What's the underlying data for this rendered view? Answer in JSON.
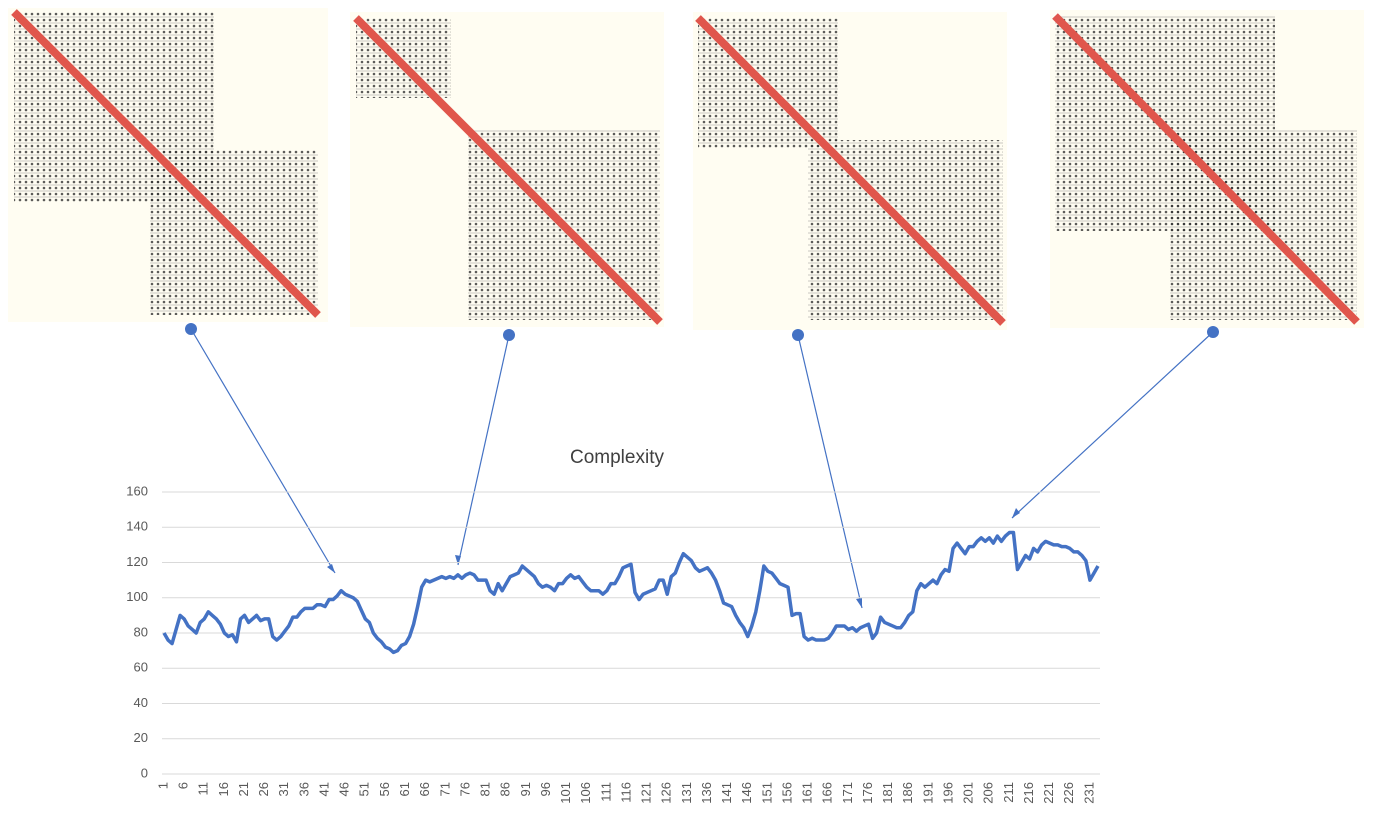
{
  "chart_data": {
    "type": "line",
    "title": "Complexity",
    "x": [
      1,
      2,
      3,
      4,
      5,
      6,
      7,
      8,
      9,
      10,
      11,
      12,
      13,
      14,
      15,
      16,
      17,
      18,
      19,
      20,
      21,
      22,
      23,
      24,
      25,
      26,
      27,
      28,
      29,
      30,
      31,
      32,
      33,
      34,
      35,
      36,
      37,
      38,
      39,
      40,
      41,
      42,
      43,
      44,
      45,
      46,
      47,
      48,
      49,
      50,
      51,
      52,
      53,
      54,
      55,
      56,
      57,
      58,
      59,
      60,
      61,
      62,
      63,
      64,
      65,
      66,
      67,
      68,
      69,
      70,
      71,
      72,
      73,
      74,
      75,
      76,
      77,
      78,
      79,
      80,
      81,
      82,
      83,
      84,
      85,
      86,
      87,
      88,
      89,
      90,
      91,
      92,
      93,
      94,
      95,
      96,
      97,
      98,
      99,
      100,
      101,
      102,
      103,
      104,
      105,
      106,
      107,
      108,
      109,
      110,
      111,
      112,
      113,
      114,
      115,
      116,
      117,
      118,
      119,
      120,
      121,
      122,
      123,
      124,
      125,
      126,
      127,
      128,
      129,
      130,
      131,
      132,
      133,
      134,
      135,
      136,
      137,
      138,
      139,
      140,
      141,
      142,
      143,
      144,
      145,
      146,
      147,
      148,
      149,
      150,
      151,
      152,
      153,
      154,
      155,
      156,
      157,
      158,
      159,
      160,
      161,
      162,
      163,
      164,
      165,
      166,
      167,
      168,
      169,
      170,
      171,
      172,
      173,
      174,
      175,
      176,
      177,
      178,
      179,
      180,
      181,
      182,
      183,
      184,
      185,
      186,
      187,
      188,
      189,
      190,
      191,
      192,
      193,
      194,
      195,
      196,
      197,
      198,
      199,
      200,
      201,
      202,
      203,
      204,
      205,
      206,
      207,
      208,
      209,
      210,
      211,
      212,
      213,
      214,
      215,
      216,
      217,
      218,
      219,
      220,
      221,
      222,
      223,
      224,
      225,
      226,
      227,
      228,
      229,
      230,
      231,
      232,
      233
    ],
    "series": [
      {
        "color": "#4472c4",
        "values": [
          80,
          76,
          74,
          82,
          90,
          88,
          84,
          82,
          80,
          86,
          88,
          92,
          90,
          88,
          85,
          80,
          78,
          79,
          75,
          88,
          90,
          86,
          88,
          90,
          87,
          88,
          88,
          78,
          76,
          78,
          81,
          84,
          89,
          89,
          92,
          94,
          94,
          94,
          96,
          96,
          95,
          99,
          99,
          101,
          104,
          102,
          101,
          100,
          98,
          93,
          88,
          86,
          80,
          77,
          75,
          72,
          71,
          69,
          70,
          73,
          74,
          78,
          85,
          95,
          106,
          110,
          109,
          110,
          111,
          112,
          111,
          112,
          111,
          113,
          111,
          113,
          114,
          113,
          110,
          110,
          110,
          104,
          102,
          108,
          104,
          108,
          112,
          113,
          114,
          118,
          116,
          114,
          112,
          108,
          106,
          107,
          106,
          104,
          108,
          108,
          111,
          113,
          111,
          112,
          109,
          106,
          104,
          104,
          104,
          102,
          104,
          108,
          108,
          112,
          117,
          118,
          119,
          103,
          99,
          102,
          103,
          104,
          105,
          110,
          110,
          102,
          112,
          114,
          120,
          125,
          123,
          121,
          117,
          115,
          116,
          117,
          114,
          110,
          104,
          97,
          96,
          95,
          90,
          86,
          83,
          78,
          84,
          92,
          104,
          118,
          115,
          114,
          111,
          108,
          107,
          106,
          90,
          91,
          91,
          78,
          76,
          77,
          76,
          76,
          76,
          77,
          80,
          84,
          84,
          84,
          82,
          83,
          81,
          83,
          84,
          85,
          77,
          80,
          89,
          86,
          85,
          84,
          83,
          83,
          86,
          90,
          92,
          104,
          108,
          106,
          108,
          110,
          108,
          113,
          116,
          115,
          128,
          131,
          128,
          125,
          129,
          129,
          132,
          134,
          132,
          134,
          131,
          135,
          132,
          135,
          137,
          137,
          116,
          120,
          124,
          122,
          128,
          126,
          130,
          132,
          131,
          130,
          130,
          129,
          129,
          128,
          126,
          126,
          124,
          121,
          110,
          114,
          118
        ]
      }
    ],
    "xlim": [
      0.5,
      233.5
    ],
    "xticks": [
      1,
      6,
      11,
      16,
      21,
      26,
      31,
      36,
      41,
      46,
      51,
      56,
      61,
      66,
      71,
      76,
      81,
      86,
      91,
      96,
      101,
      106,
      111,
      116,
      121,
      126,
      131,
      136,
      141,
      146,
      151,
      156,
      161,
      166,
      171,
      176,
      181,
      186,
      191,
      196,
      201,
      206,
      211,
      216,
      221,
      226,
      231
    ],
    "ylim": [
      0,
      160
    ],
    "yticks": [
      0,
      20,
      40,
      60,
      80,
      100,
      120,
      140,
      160
    ],
    "grid": true
  }
}
